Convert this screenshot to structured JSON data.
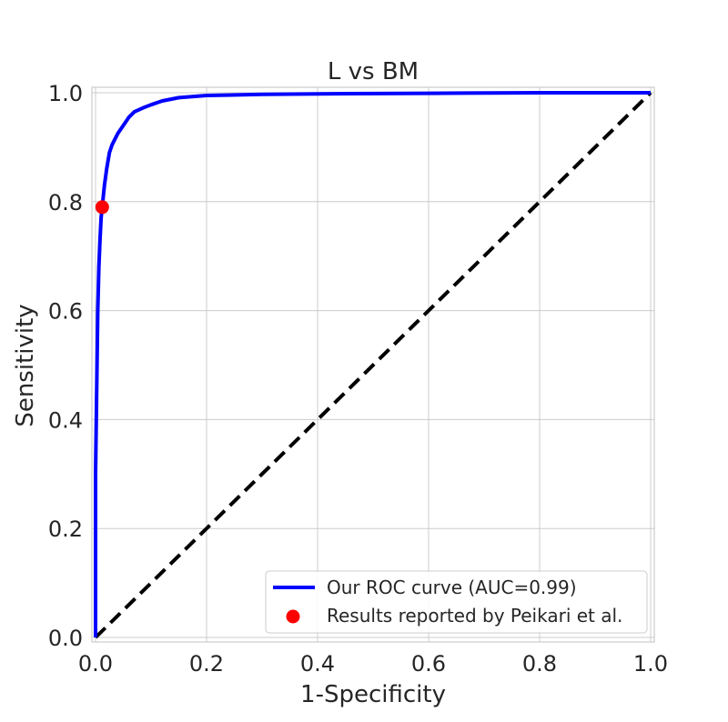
{
  "chart_data": {
    "type": "line",
    "title": "L vs BM",
    "xlabel": "1-Specificity",
    "ylabel": "Sensitivity",
    "xlim": [
      0,
      1
    ],
    "ylim": [
      0,
      1
    ],
    "x_ticks": [
      "0.0",
      "0.2",
      "0.4",
      "0.6",
      "0.8",
      "1.0"
    ],
    "y_ticks": [
      "0.0",
      "0.2",
      "0.4",
      "0.6",
      "0.8",
      "1.0"
    ],
    "grid": true,
    "legend_position": "lower-right",
    "series": [
      {
        "name": "Our ROC curve (AUC=0.99)",
        "kind": "line",
        "color": "#0000ff",
        "x": [
          0.0,
          0.0,
          0.002,
          0.004,
          0.006,
          0.008,
          0.01,
          0.013,
          0.016,
          0.02,
          0.025,
          0.03,
          0.04,
          0.05,
          0.06,
          0.07,
          0.085,
          0.1,
          0.12,
          0.15,
          0.2,
          0.3,
          0.4,
          0.6,
          0.8,
          1.0
        ],
        "y": [
          0.0,
          0.3,
          0.45,
          0.6,
          0.68,
          0.73,
          0.77,
          0.8,
          0.83,
          0.86,
          0.89,
          0.905,
          0.925,
          0.94,
          0.955,
          0.965,
          0.972,
          0.978,
          0.985,
          0.991,
          0.995,
          0.997,
          0.998,
          0.999,
          1.0,
          1.0
        ]
      },
      {
        "name": "Results reported by Peikari et al.",
        "kind": "scatter",
        "color": "#ff0000",
        "x": [
          0.012
        ],
        "y": [
          0.79
        ]
      },
      {
        "name": "",
        "kind": "dashed-line",
        "color": "#000000",
        "x": [
          0,
          1
        ],
        "y": [
          0,
          1
        ]
      }
    ]
  }
}
